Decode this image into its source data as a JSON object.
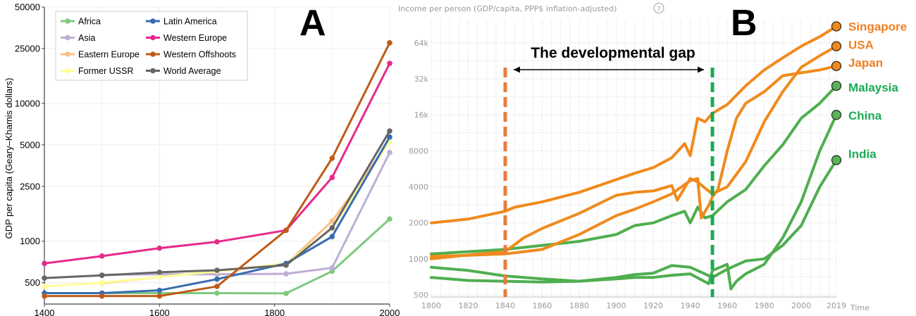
{
  "chart_data": [
    {
      "panel": "A",
      "type": "line",
      "panel_letter": "A",
      "ylabel": "GDP per capita (Geary–Khamis dollars)",
      "xlabel": "",
      "y_scale": "log",
      "xlim": [
        1400,
        2000
      ],
      "ylim": [
        350,
        50000
      ],
      "x_ticks": [
        1400,
        1600,
        1800,
        2000
      ],
      "x_tick_labels": [
        "1400",
        "1600",
        "1800",
        "2000"
      ],
      "y_ticks": [
        500,
        1000,
        2500,
        5000,
        10000,
        25000,
        50000
      ],
      "y_tick_labels": [
        "500",
        "1000",
        "2500",
        "5000",
        "10000",
        "25000",
        "50000"
      ],
      "grid": true,
      "legend_position": "top-left",
      "legend_columns": [
        [
          "Africa",
          "Asia",
          "Eastern Europe",
          "Former USSR"
        ],
        [
          "Latin America",
          "Western Europe",
          "Western Offshoots",
          "World Average"
        ]
      ],
      "x": [
        1400,
        1500,
        1600,
        1700,
        1820,
        1900,
        2000
      ],
      "series": [
        {
          "name": "Africa",
          "color": "#7fc97f",
          "values": [
            null,
            420,
            420,
            420,
            418,
            605,
            1450
          ]
        },
        {
          "name": "Asia",
          "color": "#beaed4",
          "values": [
            null,
            570,
            575,
            575,
            580,
            640,
            4400
          ]
        },
        {
          "name": "Eastern Europe",
          "color": "#fdc086",
          "values": [
            null,
            495,
            550,
            605,
            680,
            1400,
            5300
          ]
        },
        {
          "name": "Former USSR",
          "color": "#ffff99",
          "values": [
            470,
            500,
            550,
            605,
            690,
            1240,
            5300
          ]
        },
        {
          "name": "Latin America",
          "color": "#386cb0",
          "values": [
            420,
            420,
            440,
            530,
            690,
            1080,
            5700
          ]
        },
        {
          "name": "Western Europe",
          "color": "#e7298a",
          "values": [
            690,
            780,
            890,
            990,
            1200,
            2900,
            19500
          ]
        },
        {
          "name": "Western Offshoots",
          "color": "#bf5b17",
          "values": [
            400,
            400,
            400,
            470,
            1200,
            4000,
            27500
          ]
        },
        {
          "name": "World Average",
          "color": "#666666",
          "values": [
            540,
            565,
            595,
            615,
            670,
            1250,
            6300
          ]
        }
      ]
    },
    {
      "panel": "B",
      "type": "line",
      "panel_letter": "B",
      "title": "Income per person (GDP/capita, PPP$ inflation-adjusted)",
      "help_icon_glyph": "?",
      "xlabel": "Time",
      "y_scale": "log",
      "xlim": [
        1800,
        2019
      ],
      "ylim": [
        480,
        100000
      ],
      "x_ticks": [
        1800,
        1820,
        1840,
        1860,
        1880,
        1900,
        1920,
        1940,
        1960,
        1980,
        2000,
        2019
      ],
      "x_tick_labels": [
        "1800",
        "1820",
        "1840",
        "1860",
        "1880",
        "1900",
        "1920",
        "1940",
        "1960",
        "1980",
        "2000",
        "2019"
      ],
      "y_ticks": [
        500,
        1000,
        2000,
        4000,
        8000,
        16000,
        32000,
        64000
      ],
      "y_tick_labels": [
        "500",
        "1000",
        "2000",
        "4000",
        "8000",
        "16k",
        "32k",
        "64k"
      ],
      "grid": true,
      "annotation": {
        "text": "The developmental gap",
        "from_year": 1840,
        "to_year": 1952,
        "lines": [
          {
            "year": 1840,
            "color": "#e87d3e",
            "style": "dashed"
          },
          {
            "year": 1952,
            "color": "#1aaa55",
            "style": "dashed"
          }
        ]
      },
      "series": [
        {
          "name": "Singapore",
          "color": "#f08a1c",
          "label_color": "#f07f22",
          "points": [
            [
              1800,
              2000
            ],
            [
              1820,
              2150
            ],
            [
              1840,
              2500
            ],
            [
              1845,
              2700
            ],
            [
              1860,
              3000
            ],
            [
              1880,
              3600
            ],
            [
              1900,
              4600
            ],
            [
              1910,
              5200
            ],
            [
              1920,
              5800
            ],
            [
              1930,
              7000
            ],
            [
              1937,
              9200
            ],
            [
              1940,
              7300
            ],
            [
              1944,
              15000
            ],
            [
              1948,
              14000
            ],
            [
              1952,
              16500
            ],
            [
              1960,
              19500
            ],
            [
              1970,
              28000
            ],
            [
              1980,
              38000
            ],
            [
              1990,
              48000
            ],
            [
              2000,
              60000
            ],
            [
              2010,
              72000
            ],
            [
              2019,
              88000
            ]
          ]
        },
        {
          "name": "USA",
          "color": "#f08a1c",
          "label_color": "#f07f22",
          "points": [
            [
              1800,
              1000
            ],
            [
              1820,
              1080
            ],
            [
              1840,
              1150
            ],
            [
              1850,
              1500
            ],
            [
              1860,
              1800
            ],
            [
              1880,
              2400
            ],
            [
              1900,
              3400
            ],
            [
              1910,
              3600
            ],
            [
              1920,
              3700
            ],
            [
              1930,
              4100
            ],
            [
              1933,
              3100
            ],
            [
              1940,
              4700
            ],
            [
              1944,
              4400
            ],
            [
              1948,
              3900
            ],
            [
              1952,
              3500
            ],
            [
              1960,
              4000
            ],
            [
              1970,
              6500
            ],
            [
              1980,
              14000
            ],
            [
              1990,
              25000
            ],
            [
              2000,
              40000
            ],
            [
              2010,
              50000
            ],
            [
              2019,
              60000
            ]
          ]
        },
        {
          "name": "Japan",
          "color": "#f08a1c",
          "label_color": "#f07f22",
          "points": [
            [
              1800,
              1050
            ],
            [
              1820,
              1070
            ],
            [
              1840,
              1100
            ],
            [
              1860,
              1200
            ],
            [
              1880,
              1600
            ],
            [
              1900,
              2300
            ],
            [
              1910,
              2600
            ],
            [
              1920,
              3000
            ],
            [
              1930,
              3500
            ],
            [
              1940,
              4500
            ],
            [
              1944,
              4700
            ],
            [
              1946,
              2200
            ],
            [
              1950,
              2800
            ],
            [
              1952,
              3300
            ],
            [
              1955,
              3800
            ],
            [
              1960,
              8000
            ],
            [
              1965,
              15000
            ],
            [
              1970,
              20000
            ],
            [
              1980,
              25000
            ],
            [
              1990,
              34000
            ],
            [
              2000,
              36000
            ],
            [
              2010,
              38000
            ],
            [
              2019,
              41000
            ]
          ]
        },
        {
          "name": "Malaysia",
          "color": "#4fae4f",
          "label_color": "#1aaa55",
          "points": [
            [
              1800,
              1100
            ],
            [
              1840,
              1200
            ],
            [
              1880,
              1400
            ],
            [
              1900,
              1600
            ],
            [
              1910,
              1900
            ],
            [
              1920,
              2000
            ],
            [
              1930,
              2300
            ],
            [
              1937,
              2500
            ],
            [
              1940,
              2000
            ],
            [
              1944,
              2700
            ],
            [
              1948,
              2200
            ],
            [
              1952,
              2300
            ],
            [
              1960,
              3000
            ],
            [
              1970,
              3800
            ],
            [
              1980,
              6000
            ],
            [
              1990,
              9000
            ],
            [
              2000,
              15000
            ],
            [
              2010,
              20000
            ],
            [
              2019,
              28000
            ]
          ]
        },
        {
          "name": "China",
          "color": "#4fae4f",
          "label_color": "#1aaa55",
          "points": [
            [
              1800,
              850
            ],
            [
              1820,
              800
            ],
            [
              1840,
              720
            ],
            [
              1860,
              680
            ],
            [
              1880,
              650
            ],
            [
              1900,
              680
            ],
            [
              1910,
              700
            ],
            [
              1920,
              700
            ],
            [
              1930,
              730
            ],
            [
              1940,
              750
            ],
            [
              1950,
              620
            ],
            [
              1952,
              800
            ],
            [
              1960,
              900
            ],
            [
              1962,
              560
            ],
            [
              1965,
              650
            ],
            [
              1970,
              750
            ],
            [
              1980,
              900
            ],
            [
              1990,
              1500
            ],
            [
              2000,
              3000
            ],
            [
              2010,
              8000
            ],
            [
              2019,
              16000
            ]
          ]
        },
        {
          "name": "India",
          "color": "#4fae4f",
          "label_color": "#1aaa55",
          "points": [
            [
              1800,
              700
            ],
            [
              1820,
              660
            ],
            [
              1840,
              650
            ],
            [
              1860,
              640
            ],
            [
              1880,
              650
            ],
            [
              1900,
              700
            ],
            [
              1910,
              740
            ],
            [
              1920,
              760
            ],
            [
              1930,
              880
            ],
            [
              1940,
              850
            ],
            [
              1947,
              760
            ],
            [
              1952,
              700
            ],
            [
              1960,
              820
            ],
            [
              1970,
              960
            ],
            [
              1980,
              1000
            ],
            [
              1990,
              1300
            ],
            [
              2000,
              1900
            ],
            [
              2010,
              4000
            ],
            [
              2019,
              6700
            ]
          ]
        }
      ]
    }
  ]
}
